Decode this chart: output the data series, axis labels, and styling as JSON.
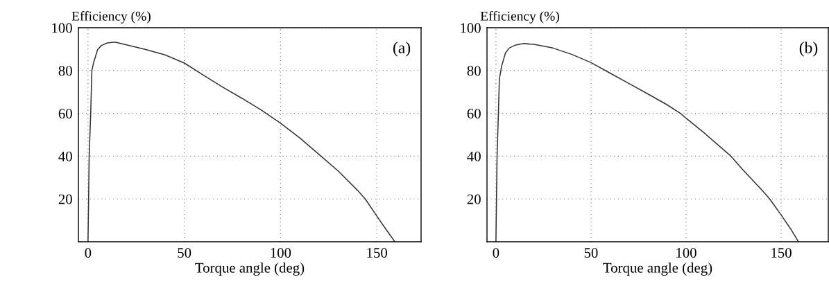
{
  "chart_data": [
    {
      "type": "line",
      "xlabel": "Torque angle (deg)",
      "ylabel": "Efficiency (%)",
      "annotations": [
        "(a)"
      ],
      "series": [
        {
          "color": "#333333",
          "x": [
            0,
            0.3,
            0.6,
            1.4,
            2,
            3,
            5,
            7,
            10,
            14,
            20,
            30,
            40,
            50,
            60,
            70,
            80,
            90,
            100,
            110,
            121,
            130,
            140,
            144,
            150,
            155,
            159.4
          ],
          "values": [
            0,
            20,
            40,
            60,
            80,
            84,
            89.8,
            91.7,
            92.9,
            93.3,
            92,
            89.8,
            87.3,
            83.5,
            77.8,
            72.2,
            67,
            61.5,
            55.4,
            48.5,
            40,
            33,
            24,
            20,
            12,
            5.5,
            0
          ]
        }
      ],
      "xlim": [
        -5,
        173
      ],
      "ylim": [
        0,
        100
      ],
      "xticks": [
        0,
        50,
        100,
        150
      ],
      "yticks": [
        20,
        40,
        60,
        80,
        100
      ],
      "grid": true,
      "line_style": "solid",
      "marker": "none"
    },
    {
      "type": "line",
      "xlabel": "Torque angle (deg)",
      "ylabel": "Efficiency (%)",
      "annotations": [
        "(b)"
      ],
      "series": [
        {
          "color": "#333333",
          "x": [
            0,
            0.3,
            0.6,
            1.3,
            1.8,
            3,
            5,
            7,
            10,
            14.7,
            20,
            30,
            40,
            50,
            60,
            70,
            80,
            90,
            97,
            100,
            110,
            123.6,
            130,
            140,
            144,
            150,
            155,
            159.1
          ],
          "values": [
            0,
            20,
            40,
            60,
            76,
            82,
            88.2,
            90.5,
            91.8,
            92.6,
            92.2,
            90.5,
            87.5,
            83.7,
            78.8,
            73.9,
            69,
            64,
            60,
            57.7,
            50.5,
            40,
            33.5,
            24,
            20,
            12.5,
            6,
            0
          ]
        }
      ],
      "xlim": [
        -4.7,
        174.8
      ],
      "ylim": [
        0,
        100
      ],
      "xticks": [
        0,
        50,
        100,
        150
      ],
      "yticks": [
        20,
        40,
        60,
        80,
        100
      ],
      "grid": true,
      "line_style": "solid",
      "marker": "none"
    }
  ]
}
